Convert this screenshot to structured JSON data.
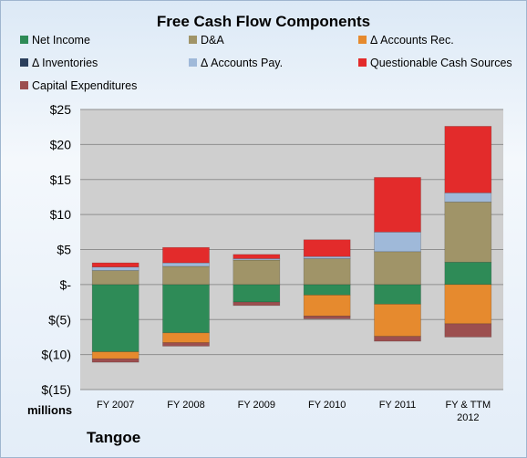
{
  "chart_data": {
    "type": "bar",
    "stacked": true,
    "title": "Free Cash Flow Components",
    "unit_label": "millions",
    "categories": [
      "FY 2007",
      "FY 2008",
      "FY 2009",
      "FY 2010",
      "FY 2011",
      "FY & TTM 2012"
    ],
    "ylim": [
      -15,
      25
    ],
    "yticks": [
      {
        "value": 25,
        "label": "$25"
      },
      {
        "value": 20,
        "label": "$20"
      },
      {
        "value": 15,
        "label": "$15"
      },
      {
        "value": 10,
        "label": "$10"
      },
      {
        "value": 5,
        "label": "$5"
      },
      {
        "value": 0,
        "label": "$-"
      },
      {
        "value": -5,
        "label": "$(5)"
      },
      {
        "value": -10,
        "label": "$(10)"
      },
      {
        "value": -15,
        "label": "$(15)"
      }
    ],
    "grid": true,
    "legend_position": "top",
    "series": [
      {
        "name": "Net Income",
        "color": "#2e8b57",
        "values": [
          -9.6,
          -6.9,
          -2.5,
          -1.5,
          -2.8,
          3.2
        ]
      },
      {
        "name": "D&A",
        "color": "#a09468",
        "values": [
          2.0,
          2.6,
          3.5,
          3.7,
          4.7,
          8.6
        ]
      },
      {
        "name": "Δ Accounts Rec.",
        "color": "#e68a2e",
        "values": [
          -1.0,
          -1.4,
          0,
          -3.0,
          -4.6,
          -5.6
        ]
      },
      {
        "name": "Δ Inventories",
        "color": "#2b3f5c",
        "values": [
          0,
          0,
          0,
          0,
          0,
          0
        ]
      },
      {
        "name": "Δ Accounts Pay.",
        "color": "#9fb9d9",
        "values": [
          0.5,
          0.5,
          0.2,
          0.3,
          2.8,
          1.3
        ]
      },
      {
        "name": "Questionable Cash Sources",
        "color": "#e32b2b",
        "values": [
          0.6,
          2.2,
          0.6,
          2.4,
          7.8,
          9.5
        ]
      },
      {
        "name": "Capital Expenditures",
        "color": "#9c4f4f",
        "values": [
          -0.5,
          -0.5,
          -0.5,
          -0.4,
          -0.7,
          -1.9
        ]
      }
    ]
  },
  "footer": {
    "unit": "millions",
    "company": "Tangoe"
  }
}
